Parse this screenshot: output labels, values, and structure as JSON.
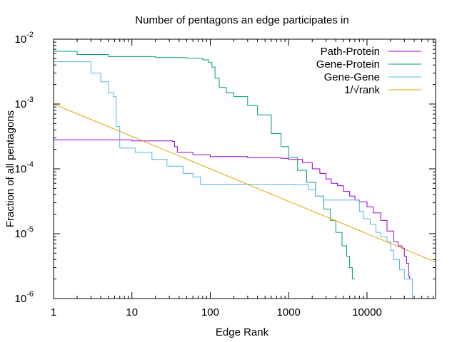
{
  "chart_data": {
    "type": "line",
    "title": "Number of pentagons an edge participates in",
    "xlabel": "Edge Rank",
    "ylabel": "Fraction of all pentagons",
    "x_scale": "log",
    "y_scale": "log",
    "xlim": [
      1,
      75000
    ],
    "ylim": [
      1e-06,
      0.01
    ],
    "x_ticks": [
      {
        "value": 1,
        "label": "1"
      },
      {
        "value": 10,
        "label": "10"
      },
      {
        "value": 100,
        "label": "100"
      },
      {
        "value": 1000,
        "label": "1000"
      },
      {
        "value": 10000,
        "label": "10000"
      }
    ],
    "y_ticks": [
      {
        "value": 1e-06,
        "base": "10",
        "exp": "-6"
      },
      {
        "value": 1e-05,
        "base": "10",
        "exp": "-5"
      },
      {
        "value": 0.0001,
        "base": "10",
        "exp": "-4"
      },
      {
        "value": 0.001,
        "base": "10",
        "exp": "-3"
      },
      {
        "value": 0.01,
        "base": "10",
        "exp": "-2"
      }
    ],
    "grid": false,
    "legend_position": "top-right",
    "series": [
      {
        "name": "Path-Protein",
        "color": "#9400d3",
        "points": [
          [
            1,
            0.00028
          ],
          [
            10,
            0.00027
          ],
          [
            33,
            0.000265
          ],
          [
            35,
            0.00022
          ],
          [
            38,
            0.00018
          ],
          [
            60,
            0.000165
          ],
          [
            100,
            0.000155
          ],
          [
            300,
            0.000148
          ],
          [
            800,
            0.000145
          ],
          [
            1000,
            0.00014
          ],
          [
            1500,
            0.000125
          ],
          [
            2000,
            0.0001
          ],
          [
            2500,
            8.5e-05
          ],
          [
            3000,
            7e-05
          ],
          [
            3500,
            6e-05
          ],
          [
            4200,
            5.5e-05
          ],
          [
            5000,
            4.5e-05
          ],
          [
            6000,
            3.8e-05
          ],
          [
            7000,
            3.3e-05
          ],
          [
            8000,
            3.1e-05
          ],
          [
            10000,
            2.6e-05
          ],
          [
            12000,
            2.1e-05
          ],
          [
            15000,
            1.6e-05
          ],
          [
            18000,
            1.1e-05
          ],
          [
            22000,
            7.5e-06
          ],
          [
            25000,
            6.5e-06
          ],
          [
            28000,
            6e-06
          ],
          [
            30000,
            4.5e-06
          ],
          [
            32000,
            3.5e-06
          ],
          [
            34000,
            2.2e-06
          ],
          [
            35000,
            2e-06
          ]
        ]
      },
      {
        "name": "Gene-Protein",
        "color": "#009e73",
        "points": [
          [
            1,
            0.0065
          ],
          [
            2,
            0.0058
          ],
          [
            5,
            0.0054
          ],
          [
            20,
            0.0052
          ],
          [
            50,
            0.0051
          ],
          [
            80,
            0.0048
          ],
          [
            95,
            0.0044
          ],
          [
            105,
            0.0037
          ],
          [
            115,
            0.0025
          ],
          [
            130,
            0.0018
          ],
          [
            160,
            0.0015
          ],
          [
            200,
            0.0013
          ],
          [
            300,
            0.00095
          ],
          [
            400,
            0.00068
          ],
          [
            600,
            0.00035
          ],
          [
            800,
            0.00022
          ],
          [
            1000,
            0.00015
          ],
          [
            1300,
            9.5e-05
          ],
          [
            1700,
            6.2e-05
          ],
          [
            2200,
            3.8e-05
          ],
          [
            2800,
            2.4e-05
          ],
          [
            3400,
            1.6e-05
          ],
          [
            4000,
            1.05e-05
          ],
          [
            4800,
            6.5e-06
          ],
          [
            5500,
            4.5e-06
          ],
          [
            6000,
            3e-06
          ],
          [
            6500,
            2e-06
          ],
          [
            7000,
            2e-06
          ]
        ]
      },
      {
        "name": "Gene-Gene",
        "color": "#56b4e9",
        "points": [
          [
            1,
            0.0045
          ],
          [
            2.3,
            0.0045
          ],
          [
            3,
            0.003
          ],
          [
            4,
            0.0022
          ],
          [
            5,
            0.0015
          ],
          [
            5.8,
            0.0013
          ],
          [
            6.3,
            0.00045
          ],
          [
            7,
            0.00021
          ],
          [
            10,
            0.00021
          ],
          [
            11,
            0.00018
          ],
          [
            15,
            0.00018
          ],
          [
            18,
            0.00014
          ],
          [
            25,
            0.00014
          ],
          [
            28,
            0.00011
          ],
          [
            40,
            0.00011
          ],
          [
            45,
            8.5e-05
          ],
          [
            60,
            7.5e-05
          ],
          [
            75,
            5.8e-05
          ],
          [
            500,
            5.8e-05
          ],
          [
            1200,
            5.7e-05
          ],
          [
            1800,
            4.8e-05
          ],
          [
            2200,
            3.8e-05
          ],
          [
            2800,
            3.3e-05
          ],
          [
            7000,
            3.3e-05
          ],
          [
            8000,
            2.2e-05
          ],
          [
            9000,
            1.7e-05
          ],
          [
            11000,
            1.4e-05
          ],
          [
            13000,
            1.05e-05
          ],
          [
            15000,
            9e-06
          ],
          [
            18000,
            7.5e-06
          ],
          [
            20000,
            5.5e-06
          ],
          [
            22000,
            4e-06
          ],
          [
            26000,
            2.8e-06
          ],
          [
            30000,
            2e-06
          ],
          [
            38000,
            1e-06
          ],
          [
            75000,
            1e-06
          ]
        ]
      },
      {
        "name": "1/√rank",
        "color": "#e69f00",
        "formula": "0.001 / sqrt(rank)",
        "points": [
          [
            1,
            0.001
          ],
          [
            75000,
            3.65e-06
          ]
        ]
      }
    ]
  }
}
